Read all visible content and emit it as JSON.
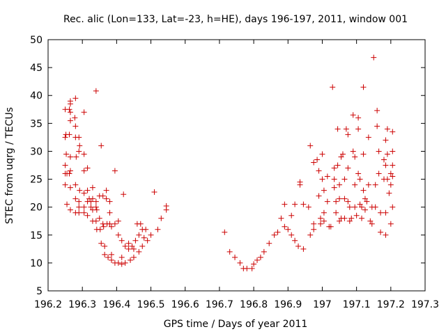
{
  "chart_data": {
    "type": "scatter",
    "title": "Rec. alic (Lon=133, Lat=-23, h=HE), days 196-197, 2011, window 001",
    "xlabel": "GPS time / Days of year 2011",
    "ylabel": "STEC from uqrg / TECUs",
    "xlim": [
      196.2,
      197.3
    ],
    "ylim": [
      5,
      50
    ],
    "xticks": [
      196.2,
      196.3,
      196.4,
      196.5,
      196.6,
      196.7,
      196.8,
      196.9,
      197,
      197.1,
      197.2,
      197.3
    ],
    "xtick_labels": [
      "196.2",
      "196.3",
      "196.4",
      "196.5",
      "196.6",
      "196.7",
      "196.8",
      "196.9",
      "197",
      "197.1",
      "197.2",
      "197.3"
    ],
    "yticks": [
      5,
      10,
      15,
      20,
      25,
      30,
      35,
      40,
      45,
      50
    ],
    "ytick_labels": [
      "5",
      "10",
      "15",
      "20",
      "25",
      "30",
      "35",
      "40",
      "45",
      "50"
    ],
    "grid": false,
    "marker": "plus",
    "color": "#cc0000",
    "points": [
      [
        196.25,
        37.5
      ],
      [
        196.252,
        33
      ],
      [
        196.25,
        32.5
      ],
      [
        196.253,
        29.5
      ],
      [
        196.25,
        27.5
      ],
      [
        196.25,
        26
      ],
      [
        196.255,
        26
      ],
      [
        196.25,
        24
      ],
      [
        196.255,
        20.5
      ],
      [
        196.265,
        39
      ],
      [
        196.265,
        38.5
      ],
      [
        196.262,
        37.5
      ],
      [
        196.265,
        37
      ],
      [
        196.265,
        35.5
      ],
      [
        196.262,
        33
      ],
      [
        196.265,
        29
      ],
      [
        196.265,
        26.5
      ],
      [
        196.262,
        26
      ],
      [
        196.265,
        23.5
      ],
      [
        196.265,
        19.5
      ],
      [
        196.28,
        39.5
      ],
      [
        196.278,
        36
      ],
      [
        196.28,
        34.5
      ],
      [
        196.28,
        32.5
      ],
      [
        196.282,
        29
      ],
      [
        196.28,
        24
      ],
      [
        196.28,
        21.5
      ],
      [
        196.28,
        19
      ],
      [
        196.29,
        32.5
      ],
      [
        196.292,
        31
      ],
      [
        196.29,
        30
      ],
      [
        196.292,
        23
      ],
      [
        196.29,
        21
      ],
      [
        196.29,
        20
      ],
      [
        196.29,
        19
      ],
      [
        196.305,
        37
      ],
      [
        196.305,
        29.5
      ],
      [
        196.305,
        26.5
      ],
      [
        196.305,
        22.5
      ],
      [
        196.305,
        20
      ],
      [
        196.305,
        19
      ],
      [
        196.315,
        27
      ],
      [
        196.315,
        23
      ],
      [
        196.315,
        21
      ],
      [
        196.315,
        18.5
      ],
      [
        196.32,
        21.5
      ],
      [
        196.325,
        21
      ],
      [
        196.325,
        20
      ],
      [
        196.33,
        23.5
      ],
      [
        196.33,
        21.5
      ],
      [
        196.33,
        19.5
      ],
      [
        196.33,
        17.5
      ],
      [
        196.34,
        40.8
      ],
      [
        196.34,
        21
      ],
      [
        196.34,
        20
      ],
      [
        196.342,
        19.5
      ],
      [
        196.34,
        17.5
      ],
      [
        196.342,
        16
      ],
      [
        196.35,
        22
      ],
      [
        196.35,
        18
      ],
      [
        196.352,
        16
      ],
      [
        196.355,
        13.5
      ],
      [
        196.355,
        31
      ],
      [
        196.36,
        22
      ],
      [
        196.36,
        17
      ],
      [
        196.362,
        16.5
      ],
      [
        196.365,
        13
      ],
      [
        196.365,
        11.5
      ],
      [
        196.37,
        23
      ],
      [
        196.37,
        21.5
      ],
      [
        196.372,
        17
      ],
      [
        196.375,
        11
      ],
      [
        196.38,
        21
      ],
      [
        196.38,
        19
      ],
      [
        196.38,
        17
      ],
      [
        196.385,
        16.5
      ],
      [
        196.385,
        11.5
      ],
      [
        196.385,
        10.5
      ],
      [
        196.395,
        26.5
      ],
      [
        196.395,
        17
      ],
      [
        196.395,
        10
      ],
      [
        196.405,
        17.5
      ],
      [
        196.405,
        15
      ],
      [
        196.405,
        10
      ],
      [
        196.415,
        14
      ],
      [
        196.415,
        11
      ],
      [
        196.415,
        9.8
      ],
      [
        196.42,
        22.3
      ],
      [
        196.425,
        13
      ],
      [
        196.425,
        10
      ],
      [
        196.435,
        12.5
      ],
      [
        196.435,
        13.5
      ],
      [
        196.44,
        10.5
      ],
      [
        196.445,
        13
      ],
      [
        196.45,
        12.5
      ],
      [
        196.45,
        11
      ],
      [
        196.455,
        14
      ],
      [
        196.46,
        17
      ],
      [
        196.465,
        15
      ],
      [
        196.465,
        12
      ],
      [
        196.47,
        17
      ],
      [
        196.475,
        16
      ],
      [
        196.475,
        13
      ],
      [
        196.48,
        14.5
      ],
      [
        196.485,
        16
      ],
      [
        196.49,
        14
      ],
      [
        196.5,
        15
      ],
      [
        196.51,
        22.7
      ],
      [
        196.52,
        16
      ],
      [
        196.53,
        18
      ],
      [
        196.545,
        19.5
      ],
      [
        196.545,
        20.2
      ],
      [
        196.715,
        15.5
      ],
      [
        196.73,
        12
      ],
      [
        196.745,
        11
      ],
      [
        196.76,
        10
      ],
      [
        196.77,
        9
      ],
      [
        196.78,
        9
      ],
      [
        196.795,
        9
      ],
      [
        196.8,
        9.8
      ],
      [
        196.81,
        10.5
      ],
      [
        196.82,
        11
      ],
      [
        196.83,
        12
      ],
      [
        196.845,
        13.5
      ],
      [
        196.86,
        15
      ],
      [
        196.87,
        15.5
      ],
      [
        196.88,
        18
      ],
      [
        196.89,
        20.5
      ],
      [
        196.89,
        16.5
      ],
      [
        196.9,
        16
      ],
      [
        196.91,
        18.5
      ],
      [
        196.91,
        15
      ],
      [
        196.92,
        20.5
      ],
      [
        196.92,
        14
      ],
      [
        196.93,
        13
      ],
      [
        196.935,
        24.5
      ],
      [
        196.935,
        24
      ],
      [
        196.945,
        20.5
      ],
      [
        196.945,
        12.5
      ],
      [
        196.96,
        20
      ],
      [
        196.965,
        31
      ],
      [
        196.965,
        15
      ],
      [
        196.975,
        28
      ],
      [
        196.975,
        17
      ],
      [
        196.975,
        16
      ],
      [
        196.985,
        28.5
      ],
      [
        196.99,
        26.5
      ],
      [
        196.99,
        22
      ],
      [
        196.995,
        17
      ],
      [
        196.995,
        18
      ],
      [
        197.0,
        29.5
      ],
      [
        197.0,
        25
      ],
      [
        197.005,
        23
      ],
      [
        197.005,
        19
      ],
      [
        197.005,
        17.5
      ],
      [
        197.015,
        25.5
      ],
      [
        197.015,
        21
      ],
      [
        197.02,
        16.5
      ],
      [
        197.025,
        16.5
      ],
      [
        197.03,
        41.5
      ],
      [
        197.035,
        27
      ],
      [
        197.035,
        25
      ],
      [
        197.035,
        23.5
      ],
      [
        197.04,
        21
      ],
      [
        197.04,
        19
      ],
      [
        197.045,
        34
      ],
      [
        197.045,
        27.5
      ],
      [
        197.05,
        24
      ],
      [
        197.05,
        21.5
      ],
      [
        197.05,
        17.5
      ],
      [
        197.055,
        29
      ],
      [
        197.055,
        18
      ],
      [
        197.06,
        29.5
      ],
      [
        197.065,
        25
      ],
      [
        197.065,
        21.5
      ],
      [
        197.065,
        18
      ],
      [
        197.07,
        34
      ],
      [
        197.075,
        33
      ],
      [
        197.075,
        27
      ],
      [
        197.075,
        21
      ],
      [
        197.08,
        20
      ],
      [
        197.08,
        17.5
      ],
      [
        197.085,
        18
      ],
      [
        197.09,
        36.5
      ],
      [
        197.09,
        30
      ],
      [
        197.095,
        29
      ],
      [
        197.095,
        24
      ],
      [
        197.095,
        20
      ],
      [
        197.1,
        18.5
      ],
      [
        197.105,
        36
      ],
      [
        197.105,
        34
      ],
      [
        197.105,
        26
      ],
      [
        197.11,
        25
      ],
      [
        197.11,
        20.5
      ],
      [
        197.115,
        18
      ],
      [
        197.115,
        20
      ],
      [
        197.12,
        41.5
      ],
      [
        197.12,
        29.5
      ],
      [
        197.12,
        23
      ],
      [
        197.125,
        21.5
      ],
      [
        197.125,
        19.5
      ],
      [
        197.13,
        21
      ],
      [
        197.135,
        32.5
      ],
      [
        197.135,
        24
      ],
      [
        197.14,
        17.5
      ],
      [
        197.145,
        17
      ],
      [
        197.145,
        20
      ],
      [
        197.15,
        46.8
      ],
      [
        197.155,
        24
      ],
      [
        197.155,
        20
      ],
      [
        197.16,
        34.5
      ],
      [
        197.16,
        37.3
      ],
      [
        197.165,
        30
      ],
      [
        197.165,
        26
      ],
      [
        197.17,
        19
      ],
      [
        197.17,
        15.5
      ],
      [
        197.18,
        28.5
      ],
      [
        197.18,
        25
      ],
      [
        197.185,
        32
      ],
      [
        197.185,
        27.5
      ],
      [
        197.185,
        19
      ],
      [
        197.185,
        15
      ],
      [
        197.19,
        34
      ],
      [
        197.19,
        29.5
      ],
      [
        197.19,
        25
      ],
      [
        197.195,
        22.5
      ],
      [
        197.2,
        26
      ],
      [
        197.2,
        24
      ],
      [
        197.2,
        17
      ],
      [
        197.205,
        33.5
      ],
      [
        197.205,
        30
      ],
      [
        197.205,
        27.5
      ],
      [
        197.205,
        25.5
      ],
      [
        197.205,
        20
      ]
    ]
  }
}
